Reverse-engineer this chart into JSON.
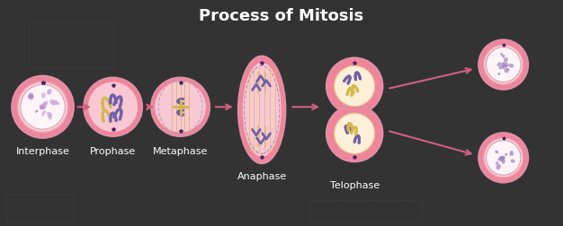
{
  "title": "Process of Mitosis",
  "title_color": "#ffffff",
  "title_fontsize": 13,
  "background_color": "#333333",
  "phases": [
    "Interphase",
    "Prophase",
    "Metaphase",
    "Anaphase",
    "Telophase"
  ],
  "label_color": "#ffffff",
  "label_fontsize": 8,
  "cell_outer_color": "#f0849a",
  "cell_inner_color": "#fce8ee",
  "nucleus_wall_color": "#f5c0cc",
  "chromosome_yellow": "#d4b84a",
  "chromosome_purple": "#7060a8",
  "spindle_color": "#c8b040",
  "arrow_color": "#d06080",
  "dot_color": "#4a2860",
  "chromatin_color": "#a080c0",
  "grid_line_color": "#404050"
}
